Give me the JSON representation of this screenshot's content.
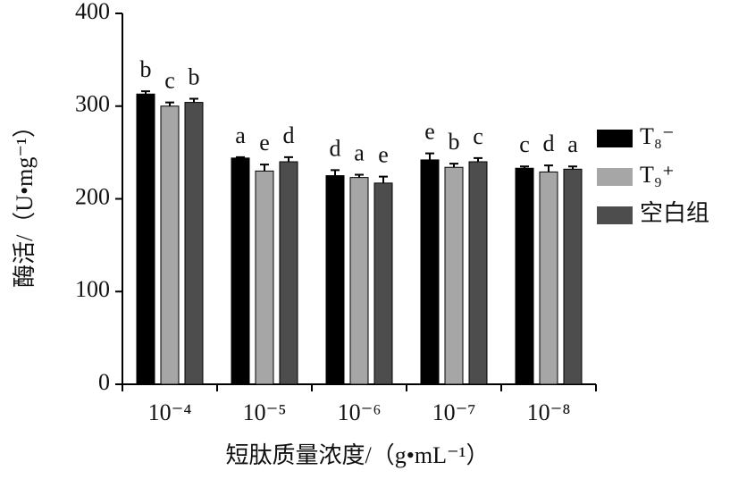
{
  "chart_data": {
    "type": "bar",
    "y_label": "酶活/（U•mg⁻¹）",
    "x_label": "短肽质量浓度/（g•mL⁻¹）",
    "categories": [
      "10⁻⁴",
      "10⁻⁵",
      "10⁻⁶",
      "10⁻⁷",
      "10⁻⁸"
    ],
    "series": [
      {
        "name": "T₈⁻",
        "color": "#000000",
        "values": [
          313,
          244,
          225,
          242,
          233
        ],
        "errors": [
          3,
          1,
          6,
          7,
          2
        ],
        "letters": [
          "b",
          "a",
          "d",
          "e",
          "c"
        ]
      },
      {
        "name": "T₉⁺",
        "color": "#a6a6a6",
        "values": [
          300,
          230,
          223,
          234,
          229
        ],
        "errors": [
          4,
          7,
          3,
          4,
          7
        ],
        "letters": [
          "c",
          "e",
          "a",
          "b",
          "d"
        ]
      },
      {
        "name": "空白组",
        "color": "#4d4d4d",
        "values": [
          304,
          240,
          217,
          240,
          232
        ],
        "errors": [
          4,
          5,
          7,
          4,
          3
        ],
        "letters": [
          "b",
          "d",
          "e",
          "c",
          "a"
        ]
      }
    ],
    "ylim": [
      0,
      400
    ],
    "yticks": [
      0,
      100,
      200,
      300,
      400
    ],
    "grid": false,
    "legend": "right"
  }
}
